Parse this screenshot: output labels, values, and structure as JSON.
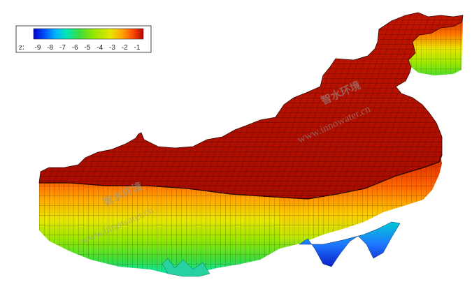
{
  "legend": {
    "variable_label": "z:",
    "tick_labels": [
      "-9",
      "-8",
      "-7",
      "-6",
      "-5",
      "-4",
      "-3",
      "-2",
      "-1"
    ],
    "range": [
      -9.5,
      -0.5
    ],
    "colors": [
      "#0000c8",
      "#0050ff",
      "#00b4ff",
      "#00e6b4",
      "#3cdc3c",
      "#96e600",
      "#e6e600",
      "#ffaa00",
      "#ff5000",
      "#d21e00",
      "#b40000"
    ]
  },
  "model": {
    "top_color": "#b01000",
    "mesh_color": "#2a0a00",
    "wall_bottom_deep_color": "#1446d2"
  },
  "watermarks": {
    "brand_cn": "智水环境",
    "url": "www.innowater.cn"
  }
}
